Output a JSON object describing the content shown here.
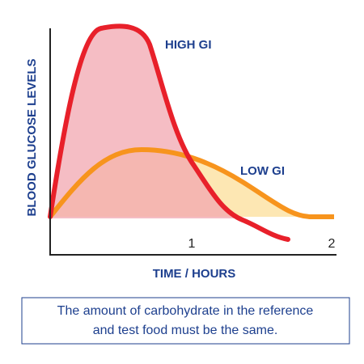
{
  "y_axis_label": "BLOOD GLUCOSE LEVELS",
  "x_axis_label": "TIME / HOURS",
  "x_tick_labels": [
    "1",
    "2"
  ],
  "curve_labels": [
    "HIGH GI",
    "LOW GI"
  ],
  "caption": [
    "The amount of carbohydrate in the reference",
    "and test food must be the same."
  ]
}
